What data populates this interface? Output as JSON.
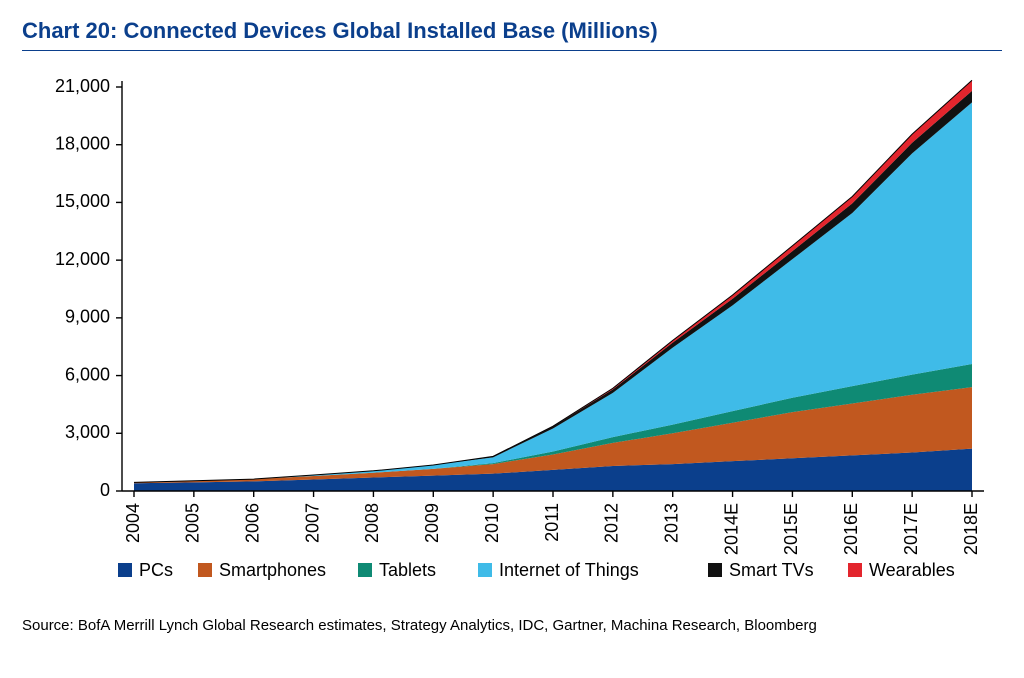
{
  "title": "Chart 20: Connected Devices Global Installed Base (Millions)",
  "source": "Source: BofA Merrill Lynch Global Research estimates, Strategy Analytics, IDC, Gartner, Machina Research, Bloomberg",
  "chart": {
    "type": "stacked-area",
    "background_color": "#ffffff",
    "axis_color": "#000000",
    "tick_color": "#000000",
    "tick_length": 6,
    "title_color": "#0b3f8c",
    "categories": [
      "2004",
      "2005",
      "2006",
      "2007",
      "2008",
      "2009",
      "2010",
      "2011",
      "2012",
      "2013",
      "2014E",
      "2015E",
      "2016E",
      "2017E",
      "2018E"
    ],
    "ylim": [
      0,
      21000
    ],
    "ytick_step": 3000,
    "y_tick_labels": [
      "0",
      "3,000",
      "6,000",
      "9,000",
      "12,000",
      "15,000",
      "18,000",
      "21,000"
    ],
    "y_label_fontsize": 18,
    "x_label_fontsize": 18,
    "legend_fontsize": 18,
    "title_fontsize": 22,
    "series": [
      {
        "name": "PCs",
        "color": "#0b3f8c",
        "values": [
          400,
          450,
          500,
          600,
          700,
          800,
          900,
          1100,
          1300,
          1400,
          1550,
          1700,
          1850,
          2000,
          2200
        ]
      },
      {
        "name": "Smartphones",
        "color": "#c1581f",
        "values": [
          50,
          80,
          120,
          180,
          250,
          350,
          500,
          800,
          1200,
          1600,
          2000,
          2400,
          2700,
          3000,
          3200
        ]
      },
      {
        "name": "Tablets",
        "color": "#0f8a74",
        "values": [
          0,
          0,
          0,
          0,
          0,
          0,
          50,
          150,
          300,
          450,
          600,
          750,
          900,
          1050,
          1200
        ]
      },
      {
        "name": "Internet of Things",
        "color": "#3fbbe8",
        "values": [
          0,
          0,
          0,
          50,
          100,
          200,
          300,
          1200,
          2300,
          4000,
          5500,
          7200,
          9000,
          11500,
          13600
        ]
      },
      {
        "name": "Smart TVs",
        "color": "#111111",
        "values": [
          0,
          0,
          0,
          0,
          0,
          0,
          50,
          100,
          180,
          260,
          340,
          420,
          500,
          550,
          600
        ]
      },
      {
        "name": "Wearables",
        "color": "#e3252d",
        "values": [
          0,
          0,
          0,
          0,
          0,
          0,
          0,
          20,
          60,
          120,
          200,
          280,
          360,
          450,
          550
        ]
      }
    ],
    "legend_swatch_size": 14
  }
}
